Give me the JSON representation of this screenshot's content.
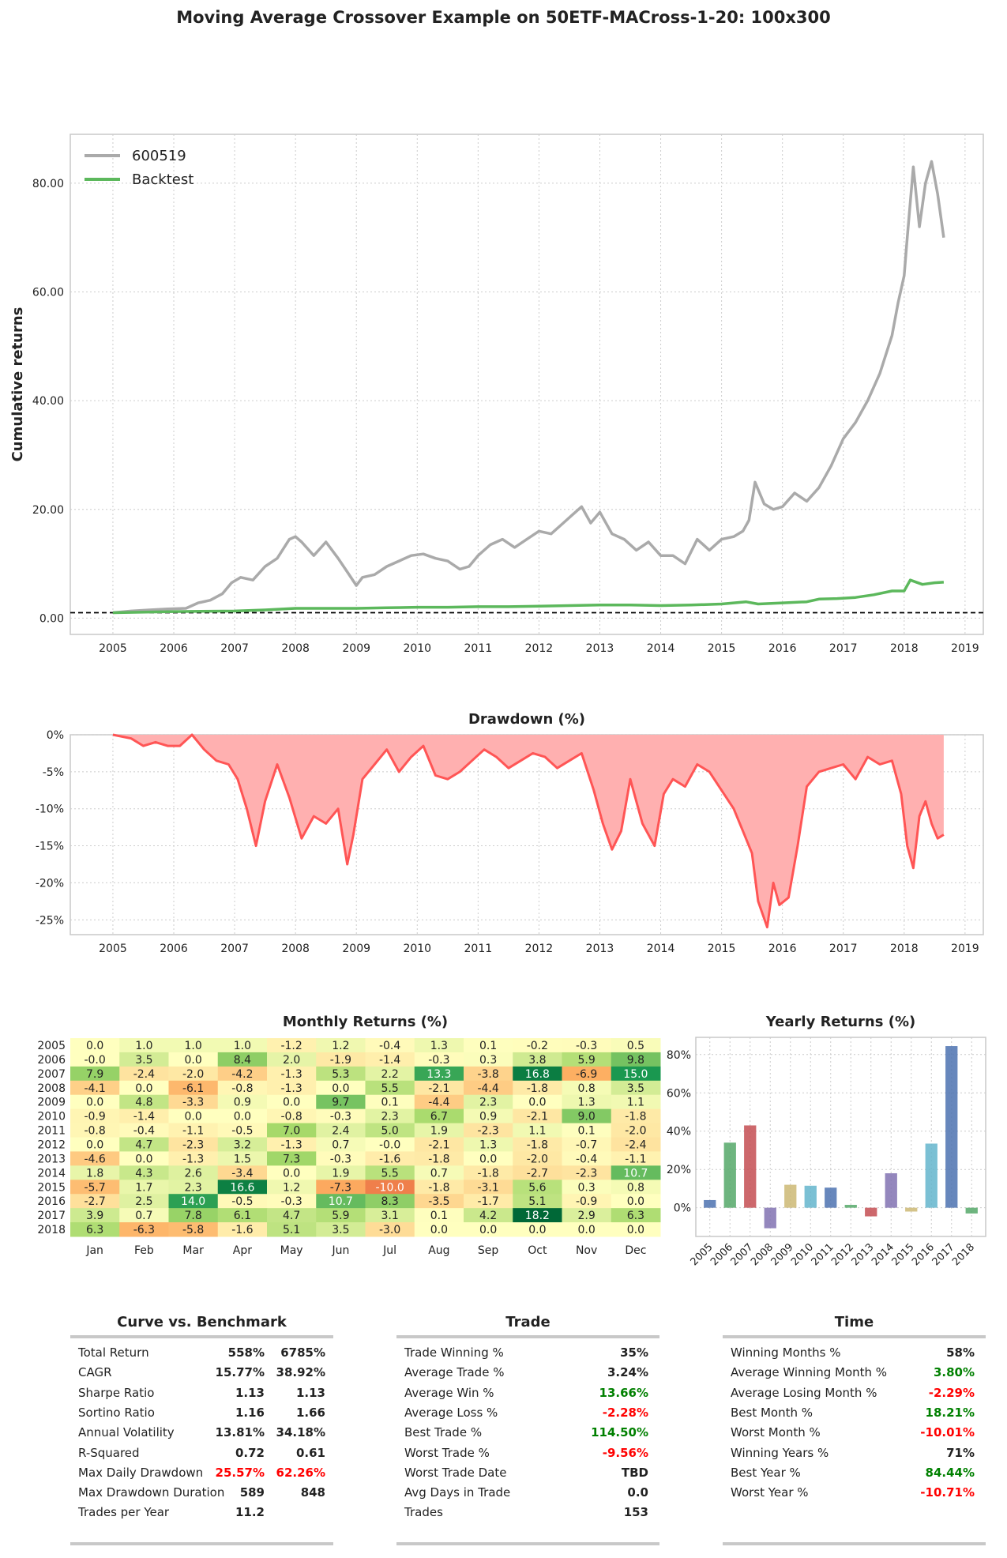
{
  "title": "Moving Average Crossover Example on 50ETF-MACross-1-20: 100x300",
  "colors": {
    "benchmark": "#aaaaaa",
    "backtest": "#5cb85c",
    "drawdown_line": "#ff5555",
    "drawdown_fill": "#ffb0b0",
    "pos": "#008000",
    "neg": "#ff0000",
    "bar_palette": [
      "#4c72b0",
      "#55a868",
      "#c44e52",
      "#8172b2",
      "#ccb974",
      "#64b5cd"
    ]
  },
  "chart_data": [
    {
      "type": "line",
      "title": "",
      "ylabel": "Cumulative returns",
      "ylim": [
        -3,
        89
      ],
      "xlim": [
        2004.3,
        2019.3
      ],
      "yticks": [
        "0.00",
        "20.00",
        "40.00",
        "60.00",
        "80.00"
      ],
      "yticks_values": [
        0,
        20,
        40,
        60,
        80
      ],
      "xticks": [
        "2005",
        "2006",
        "2007",
        "2008",
        "2009",
        "2010",
        "2011",
        "2012",
        "2013",
        "2014",
        "2015",
        "2016",
        "2017",
        "2018",
        "2019"
      ],
      "legend": "top-left",
      "series": [
        {
          "name": "600519",
          "x": [
            2005.0,
            2005.3,
            2005.6,
            2005.9,
            2006.2,
            2006.4,
            2006.6,
            2006.8,
            2006.95,
            2007.1,
            2007.3,
            2007.5,
            2007.7,
            2007.9,
            2008.0,
            2008.1,
            2008.3,
            2008.5,
            2008.7,
            2008.85,
            2009.0,
            2009.1,
            2009.3,
            2009.5,
            2009.7,
            2009.9,
            2010.1,
            2010.3,
            2010.5,
            2010.7,
            2010.85,
            2011.0,
            2011.2,
            2011.4,
            2011.6,
            2011.8,
            2012.0,
            2012.2,
            2012.4,
            2012.55,
            2012.7,
            2012.85,
            2013.0,
            2013.2,
            2013.4,
            2013.6,
            2013.8,
            2014.0,
            2014.2,
            2014.4,
            2014.6,
            2014.8,
            2015.0,
            2015.2,
            2015.35,
            2015.45,
            2015.55,
            2015.7,
            2015.85,
            2016.0,
            2016.2,
            2016.4,
            2016.6,
            2016.8,
            2017.0,
            2017.2,
            2017.4,
            2017.6,
            2017.8,
            2017.9,
            2018.0,
            2018.05,
            2018.15,
            2018.25,
            2018.35,
            2018.45,
            2018.55,
            2018.65
          ],
          "y": [
            1.0,
            1.3,
            1.5,
            1.7,
            1.8,
            2.8,
            3.3,
            4.5,
            6.5,
            7.5,
            7.0,
            9.5,
            11.0,
            14.5,
            15.0,
            14.0,
            11.5,
            14.0,
            11.0,
            8.5,
            6.0,
            7.5,
            8.0,
            9.5,
            10.5,
            11.5,
            11.8,
            11.0,
            10.5,
            9.0,
            9.5,
            11.5,
            13.5,
            14.5,
            13.0,
            14.5,
            16.0,
            15.5,
            17.5,
            19.0,
            20.5,
            17.5,
            19.5,
            15.5,
            14.5,
            12.5,
            14.0,
            11.5,
            11.5,
            10.0,
            14.5,
            12.5,
            14.5,
            15.0,
            16.0,
            18.0,
            25.0,
            21.0,
            20.0,
            20.5,
            23.0,
            21.5,
            24.0,
            28.0,
            33.0,
            36.0,
            40.0,
            45.0,
            52.0,
            58.0,
            63.0,
            70.0,
            83.0,
            72.0,
            80.0,
            84.0,
            78.0,
            70.0
          ]
        },
        {
          "name": "Backtest",
          "x": [
            2005.0,
            2006.0,
            2007.0,
            2007.5,
            2008.0,
            2008.5,
            2009.0,
            2009.5,
            2010.0,
            2010.5,
            2011.0,
            2011.5,
            2012.0,
            2012.5,
            2013.0,
            2013.5,
            2014.0,
            2014.5,
            2015.0,
            2015.4,
            2015.6,
            2016.0,
            2016.4,
            2016.6,
            2016.9,
            2017.2,
            2017.5,
            2017.8,
            2018.0,
            2018.1,
            2018.3,
            2018.5,
            2018.65
          ],
          "y": [
            1.0,
            1.2,
            1.3,
            1.5,
            1.8,
            1.8,
            1.8,
            1.9,
            2.0,
            2.0,
            2.1,
            2.1,
            2.2,
            2.3,
            2.4,
            2.4,
            2.3,
            2.4,
            2.6,
            3.0,
            2.6,
            2.8,
            3.0,
            3.5,
            3.6,
            3.8,
            4.3,
            5.0,
            5.0,
            7.0,
            6.2,
            6.5,
            6.6
          ]
        }
      ],
      "reference_line": 1.0
    },
    {
      "type": "area",
      "title": "Drawdown (%)",
      "ylim": [
        -27,
        0
      ],
      "xlim": [
        2004.3,
        2019.3
      ],
      "yticks": [
        "0%",
        "-5%",
        "-10%",
        "-15%",
        "-20%",
        "-25%"
      ],
      "yticks_values": [
        0,
        -5,
        -10,
        -15,
        -20,
        -25
      ],
      "xticks": [
        "2005",
        "2006",
        "2007",
        "2008",
        "2009",
        "2010",
        "2011",
        "2012",
        "2013",
        "2014",
        "2015",
        "2016",
        "2017",
        "2018",
        "2019"
      ],
      "series": [
        {
          "name": "",
          "x": [
            2005.0,
            2005.3,
            2005.5,
            2005.7,
            2005.9,
            2006.1,
            2006.3,
            2006.5,
            2006.7,
            2006.9,
            2007.05,
            2007.2,
            2007.35,
            2007.5,
            2007.7,
            2007.9,
            2008.1,
            2008.3,
            2008.5,
            2008.7,
            2008.85,
            2008.95,
            2009.1,
            2009.3,
            2009.5,
            2009.7,
            2009.9,
            2010.1,
            2010.3,
            2010.5,
            2010.7,
            2010.9,
            2011.1,
            2011.3,
            2011.5,
            2011.7,
            2011.9,
            2012.1,
            2012.3,
            2012.5,
            2012.7,
            2012.9,
            2013.05,
            2013.2,
            2013.35,
            2013.5,
            2013.7,
            2013.9,
            2014.05,
            2014.2,
            2014.4,
            2014.6,
            2014.8,
            2015.0,
            2015.2,
            2015.35,
            2015.5,
            2015.6,
            2015.75,
            2015.85,
            2015.95,
            2016.1,
            2016.25,
            2016.4,
            2016.6,
            2016.8,
            2017.0,
            2017.2,
            2017.4,
            2017.6,
            2017.8,
            2017.95,
            2018.05,
            2018.15,
            2018.25,
            2018.35,
            2018.45,
            2018.55,
            2018.65
          ],
          "y": [
            0,
            -0.5,
            -1.5,
            -1.0,
            -1.5,
            -1.5,
            0,
            -2.0,
            -3.5,
            -4.0,
            -6.0,
            -10.0,
            -15.0,
            -9.0,
            -4.0,
            -8.5,
            -14.0,
            -11.0,
            -12.0,
            -10.0,
            -17.5,
            -13.5,
            -6.0,
            -4.0,
            -2.0,
            -5.0,
            -3.0,
            -1.5,
            -5.5,
            -6.0,
            -5.0,
            -3.5,
            -2.0,
            -3.0,
            -4.5,
            -3.5,
            -2.5,
            -3.0,
            -4.5,
            -3.5,
            -2.5,
            -7.5,
            -12.0,
            -15.5,
            -13.0,
            -6.0,
            -12.0,
            -15.0,
            -8.0,
            -6.0,
            -7.0,
            -4.0,
            -5.0,
            -7.5,
            -10.0,
            -13.0,
            -16.0,
            -22.5,
            -26.0,
            -20.0,
            -23.0,
            -22.0,
            -15.0,
            -7.0,
            -5.0,
            -4.5,
            -4.0,
            -6.0,
            -3.0,
            -4.0,
            -3.5,
            -8.0,
            -15.0,
            -18.0,
            -11.0,
            -9.0,
            -12.0,
            -14.0,
            -13.5
          ]
        }
      ]
    },
    {
      "type": "heatmap",
      "title": "Monthly Returns (%)",
      "x": [
        "Jan",
        "Feb",
        "Mar",
        "Apr",
        "May",
        "Jun",
        "Jul",
        "Aug",
        "Sep",
        "Oct",
        "Nov",
        "Dec"
      ],
      "y": [
        "2005",
        "2006",
        "2007",
        "2008",
        "2009",
        "2010",
        "2011",
        "2012",
        "2013",
        "2014",
        "2015",
        "2016",
        "2017",
        "2018"
      ],
      "values": [
        [
          "0.0",
          "1.0",
          "1.0",
          "1.0",
          "-1.2",
          "1.2",
          "-0.4",
          "1.3",
          "0.1",
          "-0.2",
          "-0.3",
          "0.5"
        ],
        [
          "-0.0",
          "3.5",
          "0.0",
          "8.4",
          "2.0",
          "-1.9",
          "-1.4",
          "-0.3",
          "0.3",
          "3.8",
          "5.9",
          "9.8"
        ],
        [
          "7.9",
          "-2.4",
          "-2.0",
          "-4.2",
          "-1.3",
          "5.3",
          "2.2",
          "13.3",
          "-3.8",
          "16.8",
          "-6.9",
          "15.0"
        ],
        [
          "-4.1",
          "0.0",
          "-6.1",
          "-0.8",
          "-1.3",
          "0.0",
          "5.5",
          "-2.1",
          "-4.4",
          "-1.8",
          "0.8",
          "3.5"
        ],
        [
          "0.0",
          "4.8",
          "-3.3",
          "0.9",
          "0.0",
          "9.7",
          "0.1",
          "-4.4",
          "2.3",
          "0.0",
          "1.3",
          "1.1"
        ],
        [
          "-0.9",
          "-1.4",
          "0.0",
          "0.0",
          "-0.8",
          "-0.3",
          "2.3",
          "6.7",
          "0.9",
          "-2.1",
          "9.0",
          "-1.8"
        ],
        [
          "-0.8",
          "-0.4",
          "-1.1",
          "-0.5",
          "7.0",
          "2.4",
          "5.0",
          "1.9",
          "-2.3",
          "1.1",
          "0.1",
          "-2.0"
        ],
        [
          "0.0",
          "4.7",
          "-2.3",
          "3.2",
          "-1.3",
          "0.7",
          "-0.0",
          "-2.1",
          "1.3",
          "-1.8",
          "-0.7",
          "-2.4"
        ],
        [
          "-4.6",
          "0.0",
          "-1.3",
          "1.5",
          "7.3",
          "-0.3",
          "-1.6",
          "-1.8",
          "0.0",
          "-2.0",
          "-0.4",
          "-1.1"
        ],
        [
          "1.8",
          "4.3",
          "2.6",
          "-3.4",
          "0.0",
          "1.9",
          "5.5",
          "0.7",
          "-1.8",
          "-2.7",
          "-2.3",
          "10.7"
        ],
        [
          "-5.7",
          "1.7",
          "2.3",
          "16.6",
          "1.2",
          "-7.3",
          "-10.0",
          "-1.8",
          "-3.1",
          "5.6",
          "0.3",
          "0.8"
        ],
        [
          "-2.7",
          "2.5",
          "14.0",
          "-0.5",
          "-0.3",
          "10.7",
          "8.3",
          "-3.5",
          "-1.7",
          "5.1",
          "-0.9",
          "0.0"
        ],
        [
          "3.9",
          "0.7",
          "7.8",
          "6.1",
          "4.7",
          "5.9",
          "3.1",
          "0.1",
          "4.2",
          "18.2",
          "2.9",
          "6.3"
        ],
        [
          "6.3",
          "-6.3",
          "-5.8",
          "-1.6",
          "5.1",
          "3.5",
          "-3.0",
          "0.0",
          "0.0",
          "0.0",
          "0.0",
          "0.0"
        ]
      ]
    },
    {
      "type": "bar",
      "title": "Yearly Returns (%)",
      "categories": [
        "2005",
        "2006",
        "2007",
        "2008",
        "2009",
        "2010",
        "2011",
        "2012",
        "2013",
        "2014",
        "2015",
        "2016",
        "2017",
        "2018"
      ],
      "values": [
        4,
        34,
        43,
        -10.71,
        12,
        11.5,
        10.5,
        1.5,
        -4.5,
        18,
        -2,
        33.5,
        84.44,
        -3
      ],
      "ylim": [
        -15,
        89
      ],
      "yticks": [
        "0%",
        "20%",
        "40%",
        "60%",
        "80%"
      ],
      "yticks_values": [
        0,
        20,
        40,
        60,
        80
      ]
    }
  ],
  "curve": {
    "title": "Curve vs. Benchmark",
    "rows": [
      {
        "label": "Total Return",
        "v1": "558%",
        "v2": "6785%"
      },
      {
        "label": "CAGR",
        "v1": "15.77%",
        "v2": "38.92%"
      },
      {
        "label": "Sharpe Ratio",
        "v1": "1.13",
        "v2": "1.13"
      },
      {
        "label": "Sortino Ratio",
        "v1": "1.16",
        "v2": "1.66"
      },
      {
        "label": "Annual Volatility",
        "v1": "13.81%",
        "v2": "34.18%"
      },
      {
        "label": "R-Squared",
        "v1": "0.72",
        "v2": "0.61"
      },
      {
        "label": "Max Daily Drawdown",
        "v1": "25.57%",
        "v2": "62.26%",
        "color": "neg"
      },
      {
        "label": "Max Drawdown Duration",
        "v1": "589",
        "v2": "848"
      },
      {
        "label": "Trades per Year",
        "v1": "11.2",
        "v2": ""
      }
    ]
  },
  "trade": {
    "title": "Trade",
    "rows": [
      {
        "label": "Trade Winning %",
        "v1": "35%"
      },
      {
        "label": "Average Trade %",
        "v1": "3.24%"
      },
      {
        "label": "Average Win %",
        "v1": "13.66%",
        "color": "pos"
      },
      {
        "label": "Average Loss %",
        "v1": "-2.28%",
        "color": "neg"
      },
      {
        "label": "Best Trade %",
        "v1": "114.50%",
        "color": "pos"
      },
      {
        "label": "Worst Trade %",
        "v1": "-9.56%",
        "color": "neg"
      },
      {
        "label": "Worst Trade Date",
        "v1": "TBD"
      },
      {
        "label": "Avg Days in Trade",
        "v1": "0.0"
      },
      {
        "label": "Trades",
        "v1": "153"
      }
    ]
  },
  "time": {
    "title": "Time",
    "rows": [
      {
        "label": "Winning Months %",
        "v1": "58%"
      },
      {
        "label": "Average Winning Month %",
        "v1": "3.80%",
        "color": "pos"
      },
      {
        "label": "Average Losing Month %",
        "v1": "-2.29%",
        "color": "neg"
      },
      {
        "label": "Best Month %",
        "v1": "18.21%",
        "color": "pos"
      },
      {
        "label": "Worst Month %",
        "v1": "-10.01%",
        "color": "neg"
      },
      {
        "label": "Winning Years %",
        "v1": "71%"
      },
      {
        "label": "Best Year %",
        "v1": "84.44%",
        "color": "pos"
      },
      {
        "label": "Worst Year %",
        "v1": "-10.71%",
        "color": "neg"
      }
    ]
  }
}
